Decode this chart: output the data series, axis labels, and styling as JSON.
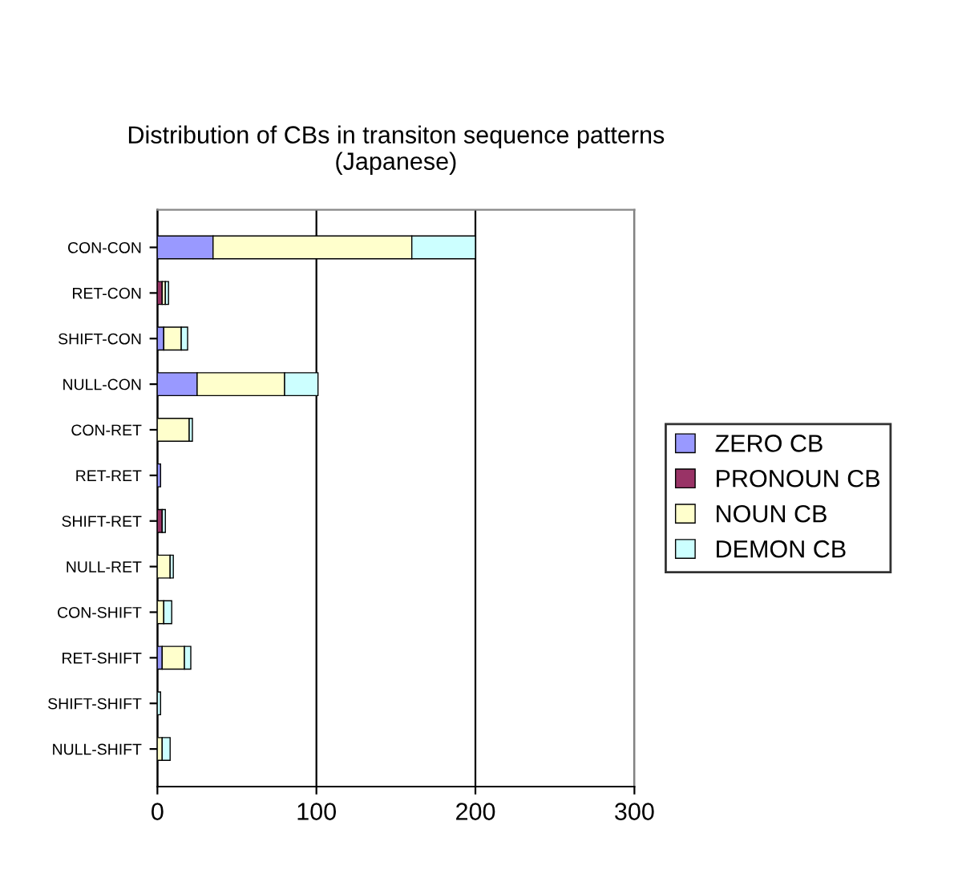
{
  "chart_data": {
    "type": "bar",
    "orientation": "horizontal",
    "stacked": true,
    "title": "Distribution of CBs in transiton sequence patterns\n(Japanese)",
    "categories": [
      "CON-CON",
      "RET-CON",
      "SHIFT-CON",
      "NULL-CON",
      "CON-RET",
      "RET-RET",
      "SHIFT-RET",
      "NULL-RET",
      "CON-SHIFT",
      "RET-SHIFT",
      "SHIFT-SHIFT",
      "NULL-SHIFT"
    ],
    "series": [
      {
        "name": "ZERO CB",
        "color": "#9999ff",
        "values": [
          35,
          null,
          4,
          25,
          null,
          2,
          null,
          null,
          null,
          3,
          null,
          null
        ]
      },
      {
        "name": "PRONOUN CB",
        "color": "#993366",
        "values": [
          null,
          3,
          null,
          null,
          null,
          null,
          3,
          null,
          null,
          null,
          null,
          null
        ]
      },
      {
        "name": "NOUN CB",
        "color": "#ffffcc",
        "values": [
          125,
          2,
          11,
          55,
          20,
          null,
          null,
          8,
          4,
          14,
          null,
          3
        ]
      },
      {
        "name": "DEMON CB",
        "color": "#ccffff",
        "values": [
          40,
          2,
          4,
          21,
          2,
          null,
          2,
          2,
          5,
          4,
          2,
          5
        ]
      }
    ],
    "xlim": [
      0,
      300
    ],
    "xticks": [
      0,
      100,
      200,
      300
    ],
    "grid": "x",
    "legend": "right"
  }
}
